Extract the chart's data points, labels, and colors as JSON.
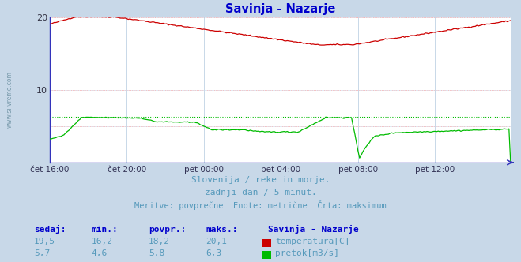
{
  "title": "Savinja - Nazarje",
  "title_color": "#0000cc",
  "bg_color": "#c8d8e8",
  "plot_bg_color": "#ffffff",
  "grid_color_solid": "#c8d8e8",
  "grid_color_dot": "#ffb0b0",
  "x_labels": [
    "čet 16:00",
    "čet 20:00",
    "pet 00:00",
    "pet 04:00",
    "pet 08:00",
    "pet 12:00"
  ],
  "x_ticks_pos": [
    0,
    48,
    96,
    144,
    192,
    240
  ],
  "total_points": 288,
  "ylim": [
    0,
    20
  ],
  "y_ticks": [
    0,
    10,
    20
  ],
  "temp_max_val": 20.1,
  "temp_color": "#cc0000",
  "flow_color": "#00bb00",
  "flow_max_val": 6.3,
  "axis_color": "#3333bb",
  "watermark_text": "www.si-vreme.com",
  "subtitle1": "Slovenija / reke in morje.",
  "subtitle2": "zadnji dan / 5 minut.",
  "subtitle3": "Meritve: povprečne  Enote: metrične  Črta: maksimum",
  "subtitle_color": "#5599bb",
  "legend_header": "Savinja - Nazarje",
  "legend_label1": "temperatura[C]",
  "legend_label2": "pretok[m3/s]",
  "stats_headers": [
    "sedaj:",
    "min.:",
    "povpr.:",
    "maks.:"
  ],
  "stats_temp": [
    "19,5",
    "16,2",
    "18,2",
    "20,1"
  ],
  "stats_flow": [
    "5,7",
    "4,6",
    "5,8",
    "6,3"
  ],
  "stats_color": "#0000cc",
  "stats_val_color": "#5599bb",
  "left_label": "www.si-vreme.com",
  "left_label_color": "#7799aa"
}
